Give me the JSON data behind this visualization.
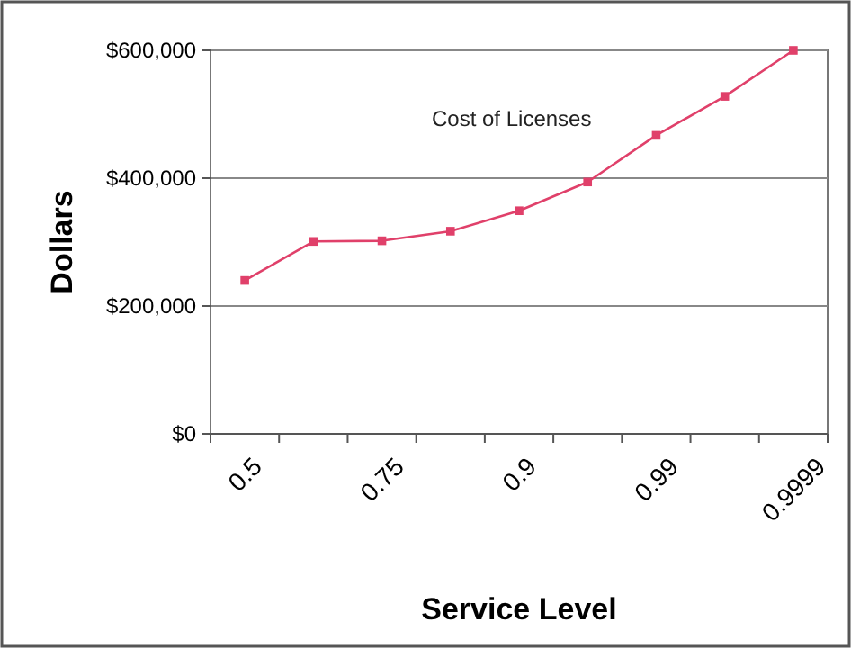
{
  "chart_data": {
    "type": "line",
    "xlabel": "Service Level",
    "ylabel": "Dollars",
    "categories": [
      "0.5",
      null,
      "0.75",
      null,
      "0.9",
      null,
      "0.99",
      null,
      "0.9999"
    ],
    "series": [
      {
        "name": "Cost of Licenses",
        "color": "#e0406a",
        "values": [
          240000,
          301000,
          302000,
          317000,
          349000,
          394000,
          467000,
          528000,
          600000
        ]
      }
    ],
    "ylim": [
      0,
      600000
    ],
    "yticks": [
      {
        "value": 0,
        "label": "$0"
      },
      {
        "value": 200000,
        "label": "$200,000"
      },
      {
        "value": 400000,
        "label": "$400,000"
      },
      {
        "value": 600000,
        "label": "$600,000"
      }
    ],
    "grid": "y",
    "marker": "square",
    "legend": "top"
  }
}
